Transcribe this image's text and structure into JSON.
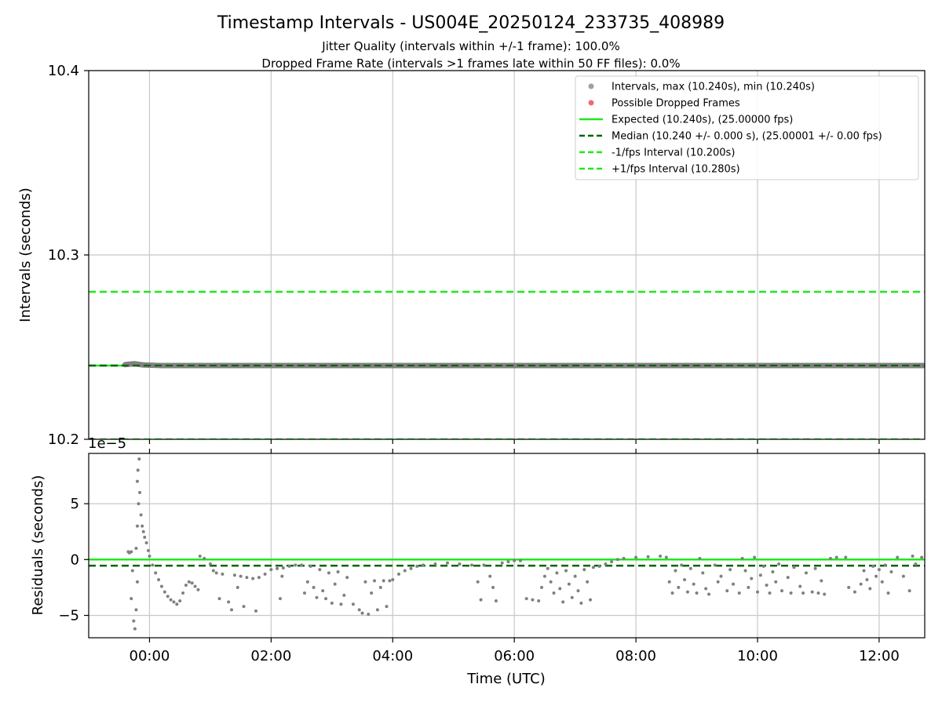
{
  "chart_data": [
    {
      "type": "scatter",
      "title": "Timestamp Intervals - US004E_20250124_233735_408989",
      "subtitle_lines": [
        "Jitter Quality (intervals within +/-1 frame): 100.0%",
        "Dropped Frame Rate (intervals >1 frames late within 50 FF files): 0.0%"
      ],
      "ylabel": "Intervals (seconds)",
      "xlabel": "",
      "ylim": [
        10.2,
        10.4
      ],
      "xlim_hours": [
        -1.0,
        12.75
      ],
      "yticks": [
        "10.2",
        "10.3",
        "10.4"
      ],
      "grid": true,
      "legend_position": "top-right",
      "legend": [
        {
          "label": "Intervals, max (10.240s), min (10.240s)",
          "style": "dot",
          "color": "#a0a0a0"
        },
        {
          "label": "Possible Dropped Frames",
          "style": "dot",
          "color": "#f06a6a"
        },
        {
          "label": "Expected (10.240s), (25.00000 fps)",
          "style": "solid",
          "color": "#1ee81e"
        },
        {
          "label": "Median (10.240 +/- 0.000 s), (25.00001 +/- 0.00 fps)",
          "style": "dashed",
          "color": "#006400"
        },
        {
          "label": "-1/fps Interval (10.200s)",
          "style": "dashed",
          "color": "#1ee81e"
        },
        {
          "label": "+1/fps Interval (10.280s)",
          "style": "dashed",
          "color": "#1ee81e"
        }
      ],
      "reference_lines": [
        {
          "name": "expected",
          "y": 10.24,
          "color": "#1ee81e",
          "dashed": false
        },
        {
          "name": "median",
          "y": 10.24,
          "color": "#006400",
          "dashed": true
        },
        {
          "name": "minus-fps",
          "y": 10.2,
          "color": "#1ee81e",
          "dashed": true
        },
        {
          "name": "plus-fps",
          "y": 10.28,
          "color": "#1ee81e",
          "dashed": true
        }
      ],
      "series": [
        {
          "points": [
            [
              -0.4,
              10.2405
            ],
            [
              -0.25,
              10.241
            ],
            [
              -0.1,
              10.2403
            ],
            [
              0.2,
              10.24
            ],
            [
              3,
              10.24
            ],
            [
              6,
              10.24
            ],
            [
              9,
              10.24
            ],
            [
              12.75,
              10.24
            ]
          ],
          "color": "#808080"
        }
      ]
    },
    {
      "type": "scatter",
      "ylabel": "Residuals (seconds)",
      "xlabel": "Time (UTC)",
      "scale_label": "1e−5",
      "ylim": [
        -7,
        9.5
      ],
      "xlim_hours": [
        -1.0,
        12.75
      ],
      "yticks": [
        {
          "value": 5,
          "label": "5"
        },
        {
          "value": 0,
          "label": "0"
        },
        {
          "value": -5,
          "label": "−5"
        }
      ],
      "xticks": [
        {
          "value": 0,
          "label": "00:00"
        },
        {
          "value": 2,
          "label": "02:00"
        },
        {
          "value": 4,
          "label": "04:00"
        },
        {
          "value": 6,
          "label": "06:00"
        },
        {
          "value": 8,
          "label": "08:00"
        },
        {
          "value": 10,
          "label": "10:00"
        },
        {
          "value": 12,
          "label": "12:00"
        }
      ],
      "grid": true,
      "reference_lines": [
        {
          "name": "expected",
          "y": 0,
          "color": "#1ee81e",
          "dashed": false
        },
        {
          "name": "median",
          "y": -0.55,
          "color": "#006400",
          "dashed": true
        }
      ],
      "series": [
        {
          "color": "#808080",
          "points": [
            [
              -0.35,
              0.7
            ],
            [
              -0.33,
              0.6
            ],
            [
              -0.3,
              0.7
            ],
            [
              -0.28,
              -1.0
            ],
            [
              -0.3,
              -3.5
            ],
            [
              -0.26,
              -5.5
            ],
            [
              -0.24,
              -6.2
            ],
            [
              -0.22,
              -4.5
            ],
            [
              -0.2,
              -2.0
            ],
            [
              -0.22,
              1.0
            ],
            [
              -0.2,
              3.0
            ],
            [
              -0.18,
              5.0
            ],
            [
              -0.2,
              7.0
            ],
            [
              -0.19,
              8.0
            ],
            [
              -0.17,
              9.0
            ],
            [
              -0.16,
              6.0
            ],
            [
              -0.14,
              4.0
            ],
            [
              -0.12,
              3.0
            ],
            [
              -0.1,
              2.5
            ],
            [
              -0.08,
              2.0
            ],
            [
              -0.05,
              1.5
            ],
            [
              -0.02,
              0.8
            ],
            [
              0.0,
              0.3
            ],
            [
              0.05,
              -0.5
            ],
            [
              0.1,
              -1.2
            ],
            [
              0.15,
              -1.8
            ],
            [
              0.2,
              -2.4
            ],
            [
              0.25,
              -2.9
            ],
            [
              0.3,
              -3.3
            ],
            [
              0.35,
              -3.6
            ],
            [
              0.4,
              -3.8
            ],
            [
              0.45,
              -4.0
            ],
            [
              0.5,
              -3.7
            ],
            [
              0.55,
              -3.0
            ],
            [
              0.6,
              -2.3
            ],
            [
              0.65,
              -2.0
            ],
            [
              0.7,
              -2.1
            ],
            [
              0.75,
              -2.4
            ],
            [
              0.8,
              -2.7
            ],
            [
              0.83,
              0.3
            ],
            [
              0.9,
              0.1
            ],
            [
              1.0,
              -0.4
            ],
            [
              1.05,
              -1.0
            ],
            [
              1.1,
              -1.2
            ],
            [
              1.15,
              -3.5
            ],
            [
              1.2,
              -1.3
            ],
            [
              1.3,
              -3.8
            ],
            [
              1.35,
              -4.5
            ],
            [
              1.4,
              -1.4
            ],
            [
              1.45,
              -2.5
            ],
            [
              1.5,
              -1.5
            ],
            [
              1.55,
              -4.2
            ],
            [
              1.6,
              -1.6
            ],
            [
              1.7,
              -1.7
            ],
            [
              1.75,
              -4.6
            ],
            [
              1.8,
              -1.6
            ],
            [
              1.9,
              -1.3
            ],
            [
              2.0,
              -0.9
            ],
            [
              2.1,
              -0.8
            ],
            [
              2.2,
              -0.75
            ],
            [
              2.15,
              -3.5
            ],
            [
              2.18,
              -1.5
            ],
            [
              2.3,
              -0.6
            ],
            [
              2.4,
              -0.5
            ],
            [
              2.5,
              -0.5
            ],
            [
              2.55,
              -3.0
            ],
            [
              2.6,
              -2.0
            ],
            [
              2.65,
              -0.6
            ],
            [
              2.7,
              -2.5
            ],
            [
              2.75,
              -3.4
            ],
            [
              2.8,
              -0.9
            ],
            [
              2.85,
              -2.8
            ],
            [
              2.9,
              -3.5
            ],
            [
              2.95,
              -1.2
            ],
            [
              3.0,
              -3.9
            ],
            [
              3.05,
              -2.2
            ],
            [
              3.1,
              -1.1
            ],
            [
              3.15,
              -4.0
            ],
            [
              3.2,
              -3.2
            ],
            [
              3.25,
              -1.6
            ],
            [
              3.35,
              -4.0
            ],
            [
              3.45,
              -4.5
            ],
            [
              3.5,
              -4.8
            ],
            [
              3.55,
              -2.0
            ],
            [
              3.6,
              -4.9
            ],
            [
              3.65,
              -3.0
            ],
            [
              3.7,
              -1.9
            ],
            [
              3.75,
              -4.5
            ],
            [
              3.8,
              -2.5
            ],
            [
              3.85,
              -1.9
            ],
            [
              3.9,
              -4.2
            ],
            [
              3.95,
              -1.9
            ],
            [
              4.0,
              -1.8
            ],
            [
              4.1,
              -1.3
            ],
            [
              4.2,
              -1.0
            ],
            [
              4.3,
              -0.8
            ],
            [
              4.4,
              -0.6
            ],
            [
              4.5,
              -0.5
            ],
            [
              4.7,
              -0.4
            ],
            [
              4.9,
              -0.3
            ],
            [
              5.1,
              -0.4
            ],
            [
              5.3,
              -0.5
            ],
            [
              5.4,
              -2.0
            ],
            [
              5.45,
              -3.6
            ],
            [
              5.5,
              -0.5
            ],
            [
              5.6,
              -1.5
            ],
            [
              5.65,
              -2.5
            ],
            [
              5.7,
              -3.7
            ],
            [
              5.8,
              -0.3
            ],
            [
              5.9,
              -0.2
            ],
            [
              6.0,
              -0.1
            ],
            [
              6.1,
              -0.1
            ],
            [
              6.2,
              -3.5
            ],
            [
              6.3,
              -3.6
            ],
            [
              6.4,
              -3.7
            ],
            [
              6.45,
              -2.5
            ],
            [
              6.5,
              -1.5
            ],
            [
              6.55,
              -0.8
            ],
            [
              6.6,
              -2.0
            ],
            [
              6.65,
              -3.0
            ],
            [
              6.7,
              -1.2
            ],
            [
              6.75,
              -2.6
            ],
            [
              6.8,
              -3.8
            ],
            [
              6.85,
              -1.0
            ],
            [
              6.9,
              -2.2
            ],
            [
              6.95,
              -3.4
            ],
            [
              7.0,
              -1.5
            ],
            [
              7.05,
              -2.8
            ],
            [
              7.1,
              -3.9
            ],
            [
              7.15,
              -0.9
            ],
            [
              7.2,
              -2.0
            ],
            [
              7.25,
              -3.6
            ],
            [
              7.3,
              -0.7
            ],
            [
              7.4,
              -0.6
            ],
            [
              7.5,
              -0.4
            ],
            [
              7.6,
              -0.2
            ],
            [
              7.7,
              0.0
            ],
            [
              7.8,
              0.1
            ],
            [
              8.0,
              0.2
            ],
            [
              8.2,
              0.25
            ],
            [
              8.4,
              0.3
            ],
            [
              8.5,
              0.2
            ],
            [
              8.55,
              -2.0
            ],
            [
              8.6,
              -3.0
            ],
            [
              8.65,
              -1.0
            ],
            [
              8.7,
              -2.5
            ],
            [
              8.75,
              -0.5
            ],
            [
              8.8,
              -1.8
            ],
            [
              8.85,
              -2.9
            ],
            [
              8.9,
              -0.8
            ],
            [
              8.95,
              -2.2
            ],
            [
              9.0,
              -3.0
            ],
            [
              9.05,
              0.1
            ],
            [
              9.1,
              -1.2
            ],
            [
              9.15,
              -2.6
            ],
            [
              9.2,
              -3.1
            ],
            [
              9.3,
              -0.5
            ],
            [
              9.35,
              -2.0
            ],
            [
              9.4,
              -1.5
            ],
            [
              9.5,
              -2.8
            ],
            [
              9.55,
              -0.9
            ],
            [
              9.6,
              -2.2
            ],
            [
              9.7,
              -3.0
            ],
            [
              9.75,
              0.1
            ],
            [
              9.8,
              -1.0
            ],
            [
              9.85,
              -2.5
            ],
            [
              9.9,
              -1.7
            ],
            [
              9.95,
              0.2
            ],
            [
              10.0,
              -2.9
            ],
            [
              10.05,
              -1.4
            ],
            [
              10.1,
              -0.6
            ],
            [
              10.15,
              -2.3
            ],
            [
              10.2,
              -3.0
            ],
            [
              10.25,
              -1.1
            ],
            [
              10.3,
              -2.0
            ],
            [
              10.35,
              -0.4
            ],
            [
              10.4,
              -2.8
            ],
            [
              10.5,
              -1.6
            ],
            [
              10.55,
              -3.0
            ],
            [
              10.6,
              -0.7
            ],
            [
              10.7,
              -2.4
            ],
            [
              10.75,
              -3.0
            ],
            [
              10.8,
              -1.2
            ],
            [
              10.9,
              -2.9
            ],
            [
              10.95,
              -0.8
            ],
            [
              11.0,
              -3.0
            ],
            [
              11.05,
              -1.9
            ],
            [
              11.1,
              -3.1
            ],
            [
              11.2,
              0.1
            ],
            [
              11.3,
              0.2
            ],
            [
              11.45,
              0.2
            ],
            [
              11.5,
              -2.5
            ],
            [
              11.6,
              -2.9
            ],
            [
              11.7,
              -2.2
            ],
            [
              11.75,
              -1.0
            ],
            [
              11.8,
              -1.8
            ],
            [
              11.85,
              -2.6
            ],
            [
              11.9,
              -0.6
            ],
            [
              11.95,
              -1.5
            ],
            [
              12.0,
              -0.9
            ],
            [
              12.05,
              -2.0
            ],
            [
              12.1,
              -0.5
            ],
            [
              12.15,
              -3.0
            ],
            [
              12.2,
              -1.1
            ],
            [
              12.3,
              0.2
            ],
            [
              12.4,
              -1.5
            ],
            [
              12.5,
              -2.8
            ],
            [
              12.55,
              0.3
            ],
            [
              12.6,
              -0.4
            ],
            [
              12.7,
              0.2
            ]
          ]
        }
      ]
    }
  ]
}
